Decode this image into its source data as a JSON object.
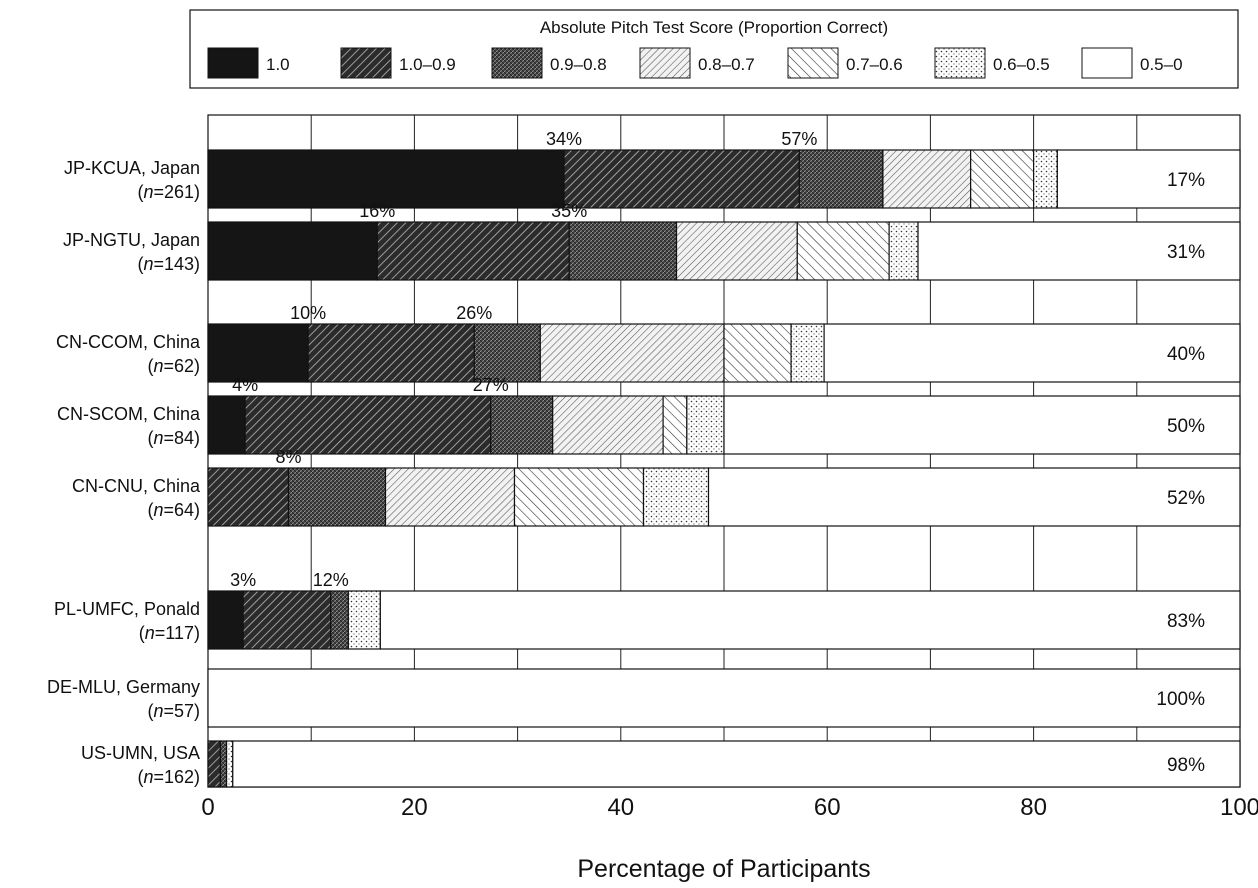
{
  "chart_data": {
    "type": "bar",
    "orientation": "horizontal",
    "stacked": true,
    "xlabel": "Percentage of Participants",
    "ylabel": "",
    "xlim": [
      0,
      100
    ],
    "xticks": [
      0,
      20,
      40,
      60,
      80,
      100
    ],
    "grid": "vertical every 10",
    "legend_placement": "top",
    "legend_title": "Absolute Pitch Test Score (Proportion Correct)",
    "series": [
      {
        "name": "1.0",
        "pattern": "solid",
        "color": "#111111",
        "values": [
          34.5,
          16.4,
          9.7,
          3.6,
          0,
          3.4,
          0,
          0
        ]
      },
      {
        "name": "1.0–0.9",
        "pattern": "dense-diagonal",
        "color": "#222222",
        "values": [
          22.8,
          18.6,
          16.1,
          23.8,
          7.8,
          8.5,
          0,
          1.2
        ]
      },
      {
        "name": "0.9–0.8",
        "pattern": "cross-hatch",
        "color": "#333333",
        "values": [
          8.1,
          10.4,
          6.4,
          6.0,
          9.4,
          1.7,
          0,
          0.6
        ]
      },
      {
        "name": "0.8–0.7",
        "pattern": "light-diagonal",
        "color": "#666666",
        "values": [
          8.5,
          11.7,
          17.8,
          10.7,
          12.5,
          0,
          0,
          0
        ]
      },
      {
        "name": "0.7–0.6",
        "pattern": "back-diagonal",
        "color": "#555555",
        "values": [
          6.1,
          8.9,
          6.5,
          2.3,
          12.5,
          0,
          0,
          0
        ]
      },
      {
        "name": "0.6–0.5",
        "pattern": "dots",
        "color": "#777777",
        "values": [
          2.3,
          2.8,
          3.2,
          3.6,
          6.3,
          3.1,
          0,
          0.6
        ]
      },
      {
        "name": "0.5–0",
        "pattern": "white",
        "color": "#ffffff",
        "values": [
          17.7,
          31.2,
          40.3,
          50.0,
          51.5,
          83.3,
          100,
          97.6
        ]
      }
    ],
    "categories": [
      {
        "name": "JP-KCUA, Japan",
        "n": "261",
        "gap_before": 0,
        "labels": [
          {
            "text": "34%",
            "at": 34.5
          },
          {
            "text": "57%",
            "at": 57.3
          }
        ],
        "end_label": "17%"
      },
      {
        "name": "JP-NGTU, Japan",
        "n": "143",
        "gap_before": 0,
        "labels": [
          {
            "text": "16%",
            "at": 16.4
          },
          {
            "text": "35%",
            "at": 35.0
          }
        ],
        "end_label": "31%"
      },
      {
        "name": "CN-CCOM, China",
        "n": "62",
        "gap_before": 1,
        "labels": [
          {
            "text": "10%",
            "at": 9.7
          },
          {
            "text": "26%",
            "at": 25.8
          }
        ],
        "end_label": "40%"
      },
      {
        "name": "CN-SCOM, China",
        "n": "84",
        "gap_before": 0,
        "labels": [
          {
            "text": "4%",
            "at": 3.6
          },
          {
            "text": "27%",
            "at": 27.4
          }
        ],
        "end_label": "50%"
      },
      {
        "name": "CN-CNU, China",
        "n": "64",
        "gap_before": 0,
        "labels": [
          {
            "text": "8%",
            "at": 7.8
          }
        ],
        "end_label": "52%"
      },
      {
        "name": "PL-UMFC, Ponald",
        "n": "117",
        "gap_before": 1,
        "labels": [
          {
            "text": "3%",
            "at": 3.4
          },
          {
            "text": "12%",
            "at": 11.9
          }
        ],
        "end_label": "83%"
      },
      {
        "name": "DE-MLU, Germany",
        "n": "57",
        "gap_before": 0,
        "labels": [],
        "end_label": "100%"
      },
      {
        "name": "US-UMN, USA",
        "n": "162",
        "gap_before": 0,
        "labels": [],
        "end_label": "98%"
      }
    ]
  }
}
